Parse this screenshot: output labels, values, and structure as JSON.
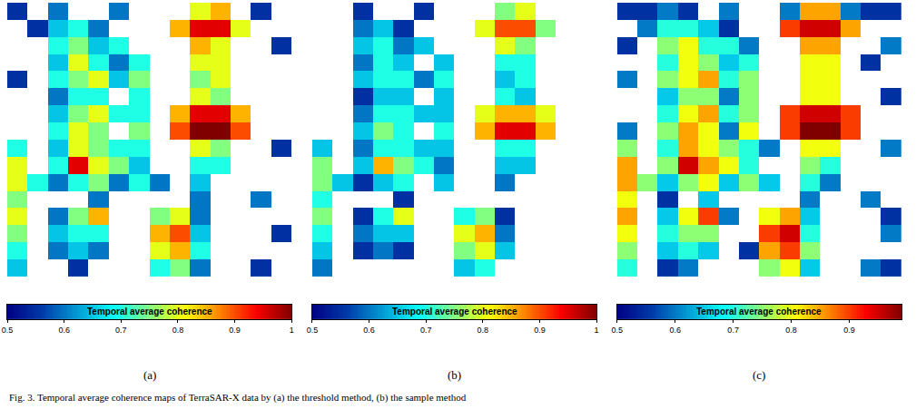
{
  "caption": "Fig. 3. Temporal average coherence maps of TerraSAR-X data by (a) the threshold method, (b) the sample method",
  "chart_data": [
    {
      "type": "heatmap",
      "label": "(a)",
      "tick_labels": false,
      "colorbar": {
        "title": "Temporal average coherence",
        "range": [
          0.5,
          1
        ],
        "ticks": [
          0.5,
          0.6,
          0.7,
          0.8,
          0.9,
          1
        ]
      },
      "cells": [
        [
          0.55,
          null,
          0.6,
          null,
          null,
          0.6,
          null,
          null,
          null,
          0.8,
          0.85,
          null,
          0.55,
          null
        ],
        [
          null,
          0.55,
          0.65,
          0.7,
          0.6,
          null,
          null,
          null,
          0.85,
          0.95,
          0.95,
          0.8,
          null,
          null
        ],
        [
          null,
          null,
          0.7,
          0.75,
          0.65,
          0.7,
          null,
          null,
          null,
          0.85,
          0.8,
          null,
          null,
          0.55
        ],
        [
          null,
          null,
          0.65,
          0.8,
          0.7,
          0.6,
          0.7,
          null,
          null,
          0.8,
          0.8,
          null,
          null,
          null
        ],
        [
          0.55,
          null,
          0.7,
          0.75,
          0.8,
          0.65,
          0.75,
          null,
          null,
          0.75,
          0.8,
          null,
          null,
          null
        ],
        [
          null,
          null,
          0.6,
          0.7,
          0.7,
          null,
          0.7,
          null,
          null,
          0.8,
          0.75,
          null,
          null,
          null
        ],
        [
          null,
          null,
          0.65,
          0.75,
          0.8,
          0.7,
          0.7,
          null,
          0.85,
          0.95,
          0.95,
          0.85,
          null,
          null
        ],
        [
          null,
          null,
          0.7,
          0.8,
          0.75,
          null,
          0.75,
          null,
          0.9,
          1.0,
          1.0,
          0.9,
          null,
          null
        ],
        [
          0.7,
          null,
          0.65,
          0.8,
          0.75,
          0.7,
          0.7,
          null,
          null,
          0.8,
          0.75,
          null,
          null,
          0.55
        ],
        [
          0.8,
          null,
          0.7,
          0.95,
          0.8,
          0.75,
          0.65,
          null,
          null,
          0.7,
          0.7,
          null,
          null,
          null
        ],
        [
          0.8,
          0.7,
          0.6,
          0.7,
          0.75,
          0.6,
          0.7,
          0.6,
          null,
          0.65,
          null,
          null,
          null,
          null
        ],
        [
          0.75,
          null,
          null,
          null,
          0.6,
          null,
          null,
          null,
          null,
          0.6,
          null,
          null,
          0.6,
          null
        ],
        [
          0.8,
          null,
          0.6,
          0.75,
          0.85,
          null,
          null,
          0.75,
          0.8,
          0.6,
          null,
          null,
          null,
          null
        ],
        [
          0.75,
          null,
          0.65,
          0.7,
          0.7,
          null,
          null,
          0.85,
          0.9,
          0.65,
          null,
          null,
          null,
          0.55
        ],
        [
          0.7,
          null,
          0.6,
          0.65,
          0.6,
          null,
          null,
          0.8,
          0.85,
          0.7,
          null,
          null,
          null,
          null
        ],
        [
          0.65,
          null,
          null,
          0.55,
          null,
          null,
          null,
          0.7,
          0.75,
          0.6,
          null,
          null,
          0.55,
          null
        ]
      ]
    },
    {
      "type": "heatmap",
      "label": "(b)",
      "tick_labels": false,
      "colorbar": {
        "title": "Temporal average coherence",
        "range": [
          0.5,
          1
        ],
        "ticks": [
          0.5,
          0.6,
          0.7,
          0.8,
          0.9,
          1
        ]
      },
      "cells": [
        [
          null,
          null,
          0.55,
          null,
          null,
          0.55,
          null,
          null,
          null,
          0.75,
          0.8,
          null,
          null,
          null
        ],
        [
          null,
          null,
          0.6,
          0.65,
          0.55,
          null,
          null,
          null,
          0.8,
          0.9,
          0.9,
          0.75,
          null,
          null
        ],
        [
          null,
          null,
          0.65,
          0.7,
          0.6,
          0.65,
          null,
          null,
          null,
          0.8,
          0.75,
          null,
          null,
          null
        ],
        [
          null,
          null,
          0.6,
          0.7,
          0.65,
          null,
          0.65,
          null,
          null,
          0.7,
          0.7,
          null,
          null,
          null
        ],
        [
          null,
          null,
          0.65,
          0.7,
          0.7,
          0.6,
          0.7,
          null,
          null,
          0.65,
          0.7,
          null,
          null,
          null
        ],
        [
          null,
          null,
          0.55,
          0.65,
          0.65,
          null,
          0.65,
          null,
          null,
          0.7,
          0.65,
          null,
          null,
          null
        ],
        [
          null,
          null,
          0.6,
          0.7,
          0.7,
          0.65,
          0.65,
          null,
          0.8,
          0.85,
          0.85,
          0.8,
          null,
          null
        ],
        [
          null,
          null,
          0.65,
          0.75,
          0.7,
          null,
          0.7,
          null,
          0.85,
          0.95,
          0.95,
          0.85,
          null,
          null
        ],
        [
          0.65,
          null,
          0.6,
          0.7,
          0.7,
          0.65,
          0.65,
          null,
          null,
          0.7,
          0.7,
          null,
          null,
          null
        ],
        [
          0.75,
          null,
          0.65,
          0.85,
          0.75,
          0.7,
          0.6,
          null,
          null,
          0.65,
          0.65,
          null,
          null,
          null
        ],
        [
          0.75,
          0.65,
          0.55,
          0.65,
          0.7,
          null,
          0.65,
          null,
          null,
          0.6,
          null,
          null,
          null,
          null
        ],
        [
          0.7,
          null,
          null,
          null,
          0.55,
          null,
          null,
          null,
          null,
          null,
          null,
          null,
          null,
          null
        ],
        [
          0.75,
          null,
          0.55,
          0.7,
          0.8,
          null,
          null,
          0.7,
          0.75,
          0.55,
          null,
          null,
          null,
          null
        ],
        [
          0.7,
          null,
          0.6,
          0.65,
          0.65,
          null,
          null,
          0.8,
          0.85,
          0.6,
          null,
          null,
          null,
          null
        ],
        [
          0.65,
          null,
          0.55,
          0.6,
          0.55,
          null,
          null,
          0.75,
          0.8,
          0.65,
          null,
          null,
          null,
          null
        ],
        [
          0.6,
          null,
          null,
          null,
          null,
          null,
          null,
          0.65,
          0.7,
          null,
          null,
          null,
          null,
          null
        ]
      ]
    },
    {
      "type": "heatmap",
      "label": "(c)",
      "tick_labels": false,
      "colorbar": {
        "title": "Temporal average coherence",
        "range": [
          0.5,
          0.99
        ],
        "ticks": [
          0.5,
          0.6,
          0.7,
          0.8,
          0.9
        ]
      },
      "cells": [
        [
          0.55,
          0.55,
          0.6,
          0.55,
          null,
          0.6,
          null,
          null,
          0.6,
          0.85,
          0.85,
          0.6,
          0.55,
          0.55
        ],
        [
          null,
          0.6,
          0.7,
          0.7,
          0.65,
          0.55,
          null,
          null,
          0.9,
          0.95,
          0.95,
          0.85,
          null,
          null
        ],
        [
          0.55,
          null,
          0.75,
          0.8,
          0.7,
          0.7,
          0.6,
          null,
          null,
          0.85,
          0.85,
          null,
          null,
          0.6
        ],
        [
          null,
          null,
          0.7,
          0.8,
          0.75,
          0.65,
          0.7,
          null,
          null,
          0.8,
          0.8,
          null,
          0.55,
          null
        ],
        [
          0.6,
          null,
          0.75,
          0.8,
          0.85,
          0.7,
          0.75,
          null,
          null,
          0.8,
          0.8,
          null,
          null,
          null
        ],
        [
          null,
          null,
          0.65,
          0.75,
          0.75,
          0.6,
          0.75,
          null,
          null,
          0.8,
          0.8,
          null,
          null,
          0.55
        ],
        [
          null,
          null,
          0.7,
          0.8,
          0.85,
          0.7,
          0.75,
          null,
          0.9,
          0.95,
          0.95,
          0.9,
          null,
          null
        ],
        [
          0.6,
          null,
          0.75,
          0.85,
          0.8,
          0.6,
          0.8,
          null,
          0.9,
          1.0,
          1.0,
          0.9,
          null,
          null
        ],
        [
          0.75,
          null,
          0.7,
          0.85,
          0.8,
          0.75,
          0.7,
          0.6,
          null,
          0.8,
          0.8,
          null,
          null,
          0.6
        ],
        [
          0.85,
          null,
          0.75,
          0.95,
          0.85,
          0.8,
          0.7,
          null,
          null,
          0.75,
          0.7,
          null,
          null,
          null
        ],
        [
          0.85,
          0.75,
          0.65,
          0.75,
          0.8,
          0.65,
          0.75,
          0.65,
          null,
          0.7,
          0.6,
          null,
          null,
          null
        ],
        [
          0.8,
          null,
          0.55,
          null,
          0.65,
          null,
          null,
          null,
          null,
          0.6,
          null,
          null,
          0.6,
          null
        ],
        [
          0.85,
          null,
          0.65,
          0.8,
          0.9,
          0.6,
          null,
          0.8,
          0.85,
          0.65,
          null,
          null,
          null,
          0.55
        ],
        [
          0.8,
          null,
          0.7,
          0.75,
          0.75,
          null,
          null,
          0.9,
          0.95,
          0.7,
          null,
          null,
          null,
          0.6
        ],
        [
          0.75,
          null,
          0.65,
          0.7,
          0.65,
          null,
          0.55,
          0.85,
          0.9,
          0.75,
          null,
          null,
          null,
          null
        ],
        [
          0.7,
          null,
          0.55,
          0.6,
          null,
          null,
          null,
          0.75,
          0.8,
          0.65,
          null,
          null,
          0.6,
          0.55
        ]
      ]
    }
  ]
}
